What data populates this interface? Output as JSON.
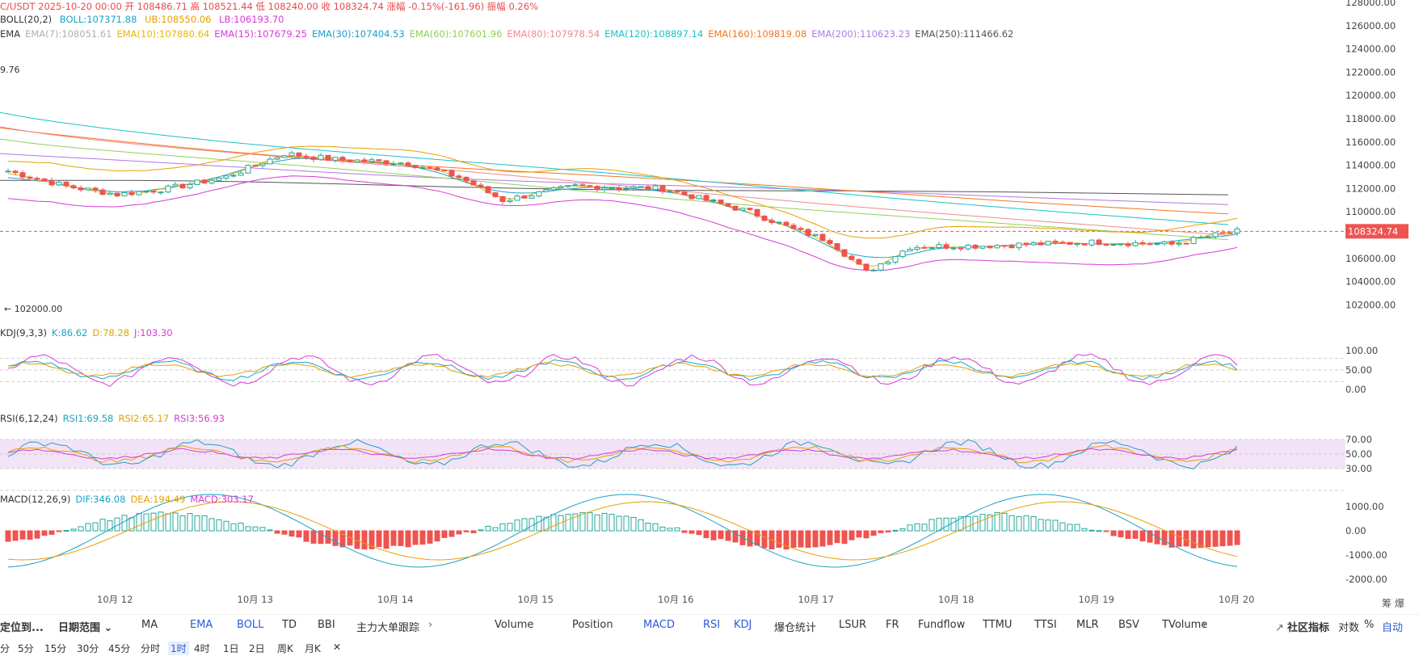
{
  "header": {
    "symbol_line": "C/USDT  2025-10-20 00:00  开 108486.71  高 108521.44  低 108240.00  收 108324.74  涨幅 -0.15%(-161.96)  振幅 0.26%",
    "boll": {
      "name": "BOLL(20,2)",
      "mid": "BOLL:107371.88",
      "ub": "UB:108550.06",
      "lb": "LB:106193.70"
    },
    "ema": [
      {
        "label": "EMA",
        "color": "#333333"
      },
      {
        "label": "EMA(7):108051.61",
        "color": "#b0b0b0"
      },
      {
        "label": "EMA(10):107880.64",
        "color": "#e6b800"
      },
      {
        "label": "EMA(15):107679.25",
        "color": "#d63ad6"
      },
      {
        "label": "EMA(30):107404.53",
        "color": "#1aa3c8"
      },
      {
        "label": "EMA(60):107601.96",
        "color": "#8fcf5a"
      },
      {
        "label": "EMA(80):107978.54",
        "color": "#f08a8a"
      },
      {
        "label": "EMA(120):108897.14",
        "color": "#19c3c8"
      },
      {
        "label": "EMA(160):109819.08",
        "color": "#f07820"
      },
      {
        "label": "EMA(200):110623.23",
        "color": "#b07ae0"
      },
      {
        "label": "EMA(250):111466.62",
        "color": "#555555"
      }
    ],
    "high_label": "9.76",
    "low_label": "← 102000.00"
  },
  "price_axis": [
    "128000.00",
    "126000.00",
    "124000.00",
    "122000.00",
    "120000.00",
    "118000.00",
    "116000.00",
    "114000.00",
    "112000.00",
    "110000.00",
    "108000.00",
    "106000.00",
    "104000.00",
    "102000.00"
  ],
  "current_price": "108324.74",
  "kdj": {
    "name": "KDJ(9,3,3)",
    "k": "K:86.62",
    "d": "D:78.28",
    "j": "J:103.30",
    "axis": [
      "100.00",
      "50.00",
      "0.00"
    ]
  },
  "rsi": {
    "name": "RSI(6,12,24)",
    "r1": "RSI1:69.58",
    "r2": "RSI2:65.17",
    "r3": "RSI3:56.93",
    "axis": [
      "70.00",
      "50.00",
      "30.00"
    ]
  },
  "macd": {
    "name": "MACD(12,26,9)",
    "dif": "DIF:346.08",
    "dea": "DEA:194.49",
    "macd": "MACD:303.17",
    "axis": [
      "1000.00",
      "0.00",
      "-1000.00",
      "-2000.00"
    ]
  },
  "dates": [
    "10月 12",
    "10月 13",
    "10月 14",
    "10月 15",
    "10月 16",
    "10月 17",
    "10月 18",
    "10月 19",
    "10月 20"
  ],
  "corner": "筹 爆",
  "toolbar": {
    "left_btn": "定位到...",
    "range": "日期范围",
    "main_inds": [
      "MA",
      "EMA",
      "BOLL",
      "TD",
      "BBI",
      "主力大单跟踪"
    ],
    "sub_inds": [
      "Volume",
      "Position",
      "MACD",
      "RSI",
      "KDJ",
      "爆仓统计",
      "LSUR",
      "FR",
      "Fundflow",
      "TTMU",
      "TTSI",
      "MLR",
      "BSV",
      "TVolume"
    ],
    "community": "社区指标",
    "log": "对数",
    "pct": "%",
    "auto": "自动"
  },
  "timeframes": [
    "分",
    "5分",
    "15分",
    "30分",
    "45分",
    "分时",
    "1时",
    "4时",
    "1日",
    "2日",
    "周K",
    "月K"
  ],
  "colors": {
    "up": "#26a69a",
    "down": "#ef5350",
    "accent": "#2a5ad7",
    "price_tag": "#ef5350"
  }
}
